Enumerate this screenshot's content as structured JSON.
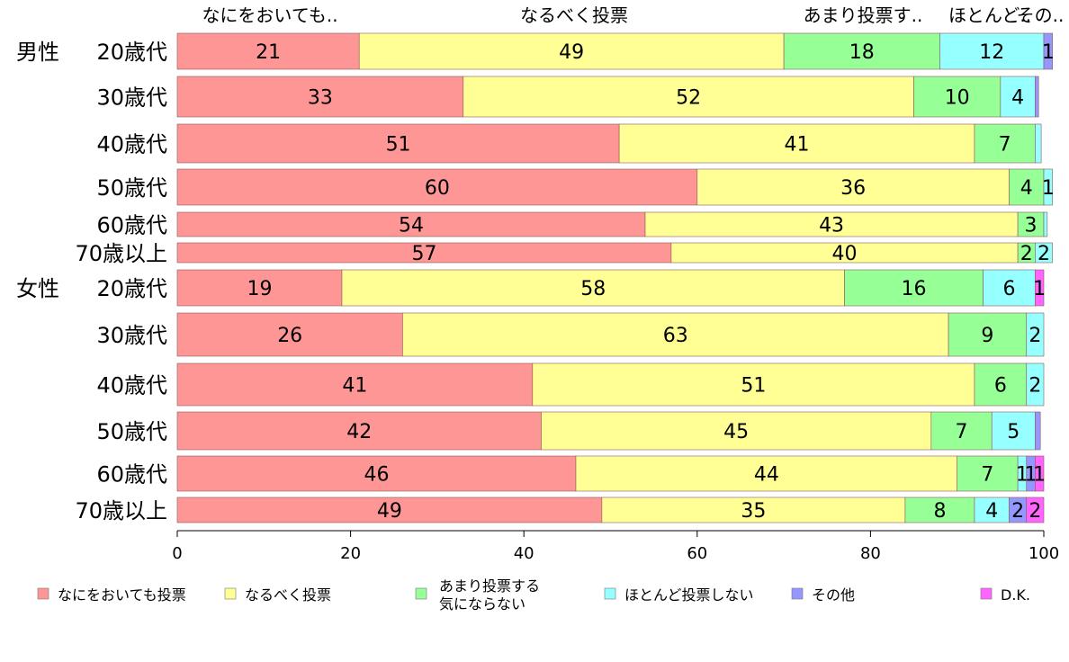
{
  "chart_data": {
    "type": "bar",
    "orientation": "horizontal",
    "stacked": true,
    "xlim": [
      0,
      100
    ],
    "x_ticks": [
      "0",
      "20",
      "40",
      "60",
      "80",
      "100"
    ],
    "group_labels": [
      "男性",
      "女性"
    ],
    "categories": [
      "20歳代",
      "30歳代",
      "40歳代",
      "50歳代",
      "60歳代",
      "70歳以上",
      "20歳代",
      "30歳代",
      "40歳代",
      "50歳代",
      "60歳代",
      "70歳以上"
    ],
    "top_labels": [
      "なにをおいても..",
      "なるべく投票",
      "あまり投票す..",
      "ほとんど..",
      "その.."
    ],
    "series": [
      {
        "name": "なにをおいても投票",
        "color": "#ff9696",
        "values": [
          21,
          33,
          51,
          60,
          54,
          57,
          19,
          26,
          41,
          42,
          46,
          49
        ]
      },
      {
        "name": "なるべく投票",
        "color": "#ffff96",
        "values": [
          49,
          52,
          41,
          36,
          43,
          40,
          58,
          63,
          51,
          45,
          44,
          35
        ]
      },
      {
        "name": "あまり投票する気にならない",
        "name_lines": [
          "あまり投票する",
          "気にならない"
        ],
        "color": "#96ff96",
        "values": [
          18,
          10,
          7,
          4,
          3,
          2,
          16,
          9,
          6,
          7,
          7,
          8
        ]
      },
      {
        "name": "ほとんど投票しない",
        "color": "#96ffff",
        "values": [
          12,
          4,
          0.7,
          1,
          0.4,
          2,
          6,
          2,
          2,
          5,
          1,
          4
        ]
      },
      {
        "name": "その他",
        "color": "#9696ff",
        "values": [
          1,
          0.4,
          0,
          0,
          0,
          0,
          0,
          0,
          0,
          0.6,
          1,
          2
        ]
      },
      {
        "name": "D.K.",
        "color": "#ff64ff",
        "values": [
          0,
          0,
          0,
          0,
          0,
          0,
          1,
          0,
          0,
          0,
          1,
          2
        ]
      }
    ],
    "data_labels": [
      [
        "21",
        "49",
        "18",
        "12",
        "1",
        ""
      ],
      [
        "33",
        "52",
        "10",
        "4",
        "",
        ""
      ],
      [
        "51",
        "41",
        "7",
        "",
        "",
        ""
      ],
      [
        "60",
        "36",
        "4",
        "1",
        "",
        ""
      ],
      [
        "54",
        "43",
        "3",
        "",
        "",
        ""
      ],
      [
        "57",
        "40",
        "2",
        "2",
        "",
        ""
      ],
      [
        "19",
        "58",
        "16",
        "6",
        "",
        "1"
      ],
      [
        "26",
        "63",
        "9",
        "2",
        "",
        ""
      ],
      [
        "41",
        "51",
        "6",
        "2",
        "",
        ""
      ],
      [
        "42",
        "45",
        "7",
        "5",
        "",
        ""
      ],
      [
        "46",
        "44",
        "7",
        "1",
        "1",
        "1"
      ],
      [
        "49",
        "35",
        "8",
        "4",
        "2",
        "2"
      ]
    ],
    "grid": false,
    "legend_position": "bottom"
  }
}
